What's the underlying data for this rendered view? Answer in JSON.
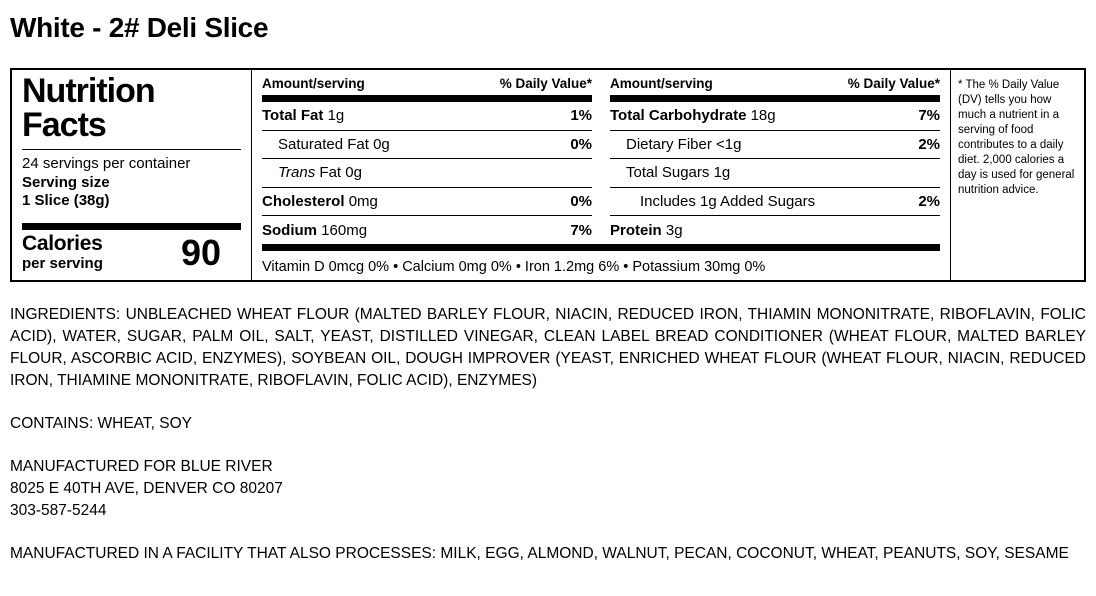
{
  "page": {
    "title": "White - 2# Deli Slice"
  },
  "label": {
    "left": {
      "title_line1": "Nutrition",
      "title_line2": "Facts",
      "servings": "24 servings per container",
      "serving_size_label": "Serving size",
      "serving_size_value": "1 Slice (38g)",
      "calories_label": "Calories",
      "calories_sub": "per serving",
      "calories_value": "90"
    },
    "columns": [
      {
        "header_amount": "Amount/serving",
        "header_dv": "% Daily Value*",
        "rows": [
          {
            "name": "Total Fat",
            "amount": "1g",
            "dv": "1%"
          },
          {
            "name": "Saturated Fat",
            "amount": "0g",
            "dv": "0%"
          },
          {
            "name": "Trans",
            "amount": "Fat 0g",
            "dv": ""
          },
          {
            "name": "Cholesterol",
            "amount": "0mg",
            "dv": "0%"
          },
          {
            "name": "Sodium",
            "amount": "160mg",
            "dv": "7%"
          }
        ]
      },
      {
        "header_amount": "Amount/serving",
        "header_dv": "% Daily Value*",
        "rows": [
          {
            "name": "Total Carbohydrate",
            "amount": "18g",
            "dv": "7%"
          },
          {
            "name": "Dietary Fiber",
            "amount": "<1g",
            "dv": "2%"
          },
          {
            "name": "Total Sugars",
            "amount": "1g",
            "dv": ""
          },
          {
            "name": "Includes 1g Added Sugars",
            "amount": "",
            "dv": "2%"
          },
          {
            "name": "Protein",
            "amount": "3g",
            "dv": ""
          }
        ]
      }
    ],
    "micronutrients": "Vitamin D 0mcg 0% • Calcium 0mg 0% • Iron 1.2mg 6% • Potassium 30mg 0%",
    "footnote": "* The % Daily Value (DV) tells you how much a nutrient in a serving of food contributes to a daily diet. 2,000 calories a day is used for general nutrition advice."
  },
  "sections": {
    "ingredients": "INGREDIENTS: UNBLEACHED WHEAT FLOUR (MALTED BARLEY FLOUR, NIACIN, REDUCED IRON, THIAMIN MONONITRATE, RIBOFLAVIN, FOLIC ACID), WATER, SUGAR, PALM OIL, SALT, YEAST, DISTILLED VINEGAR, CLEAN LABEL BREAD CONDITIONER (WHEAT FLOUR, MALTED BARLEY FLOUR, ASCORBIC ACID, ENZYMES), SOYBEAN OIL, DOUGH IMPROVER (YEAST, ENRICHED WHEAT FLOUR (WHEAT FLOUR, NIACIN, REDUCED IRON, THIAMINE MONONITRATE, RIBOFLAVIN, FOLIC ACID), ENZYMES)",
    "contains": "CONTAINS: WHEAT, SOY",
    "manufactured_for_line1": "MANUFACTURED FOR BLUE RIVER",
    "manufactured_for_line2": "8025 E 40TH AVE, DENVER CO 80207",
    "manufactured_for_line3": "303-587-5244",
    "facility": "MANUFACTURED IN A FACILITY THAT ALSO PROCESSES: MILK, EGG, ALMOND, WALNUT, PECAN, COCONUT, WHEAT, PEANUTS, SOY, SESAME"
  }
}
